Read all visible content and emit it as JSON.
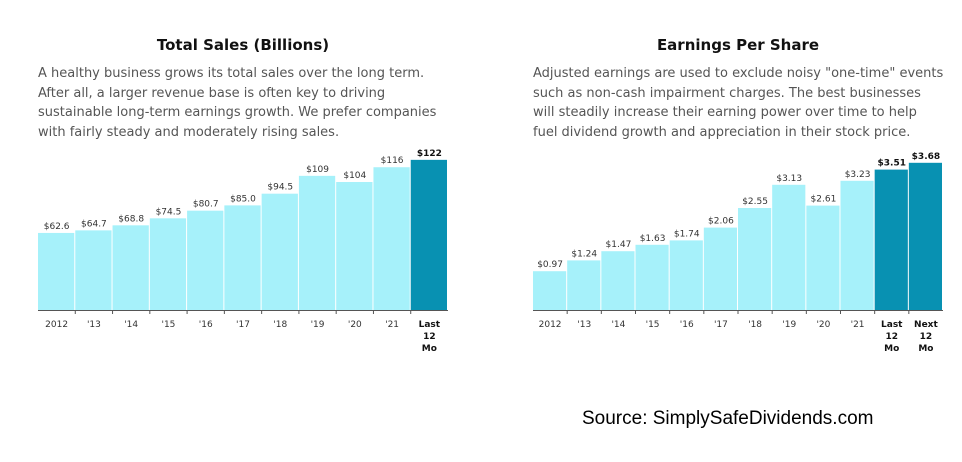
{
  "source": "Source: SimplySafeDividends.com",
  "colors": {
    "bar": "#A6F1FA",
    "highlight": "#0891B2",
    "axis": "#555555"
  },
  "panels": [
    {
      "title": "Total Sales (Billions)",
      "description": "A healthy business grows its total sales over the long term. After all, a larger revenue base is often key to driving sustainable long-term earnings growth. We prefer companies with fairly steady and moderately rising sales."
    },
    {
      "title": "Earnings Per Share",
      "description": "Adjusted earnings are used to exclude noisy \"one-time\" events such as non-cash impairment charges. The best businesses will steadily increase their earning power over time to help fuel dividend growth and appreciation in their stock price."
    }
  ],
  "chart_data": [
    {
      "type": "bar",
      "title": "Total Sales (Billions)",
      "categories": [
        "2012",
        "'13",
        "'14",
        "'15",
        "'16",
        "'17",
        "'18",
        "'19",
        "'20",
        "'21",
        "Last 12 Mo"
      ],
      "values": [
        62.6,
        64.7,
        68.8,
        74.5,
        80.7,
        85.0,
        94.5,
        109,
        104,
        116,
        122
      ],
      "labels": [
        "$62.6",
        "$64.7",
        "$68.8",
        "$74.5",
        "$80.7",
        "$85.0",
        "$94.5",
        "$109",
        "$104",
        "$116",
        "$122"
      ],
      "highlight": [
        false,
        false,
        false,
        false,
        false,
        false,
        false,
        false,
        false,
        false,
        true
      ],
      "xlabel": "",
      "ylabel": "",
      "ylim": [
        0,
        130
      ],
      "grid": false
    },
    {
      "type": "bar",
      "title": "Earnings Per Share",
      "categories": [
        "2012",
        "'13",
        "'14",
        "'15",
        "'16",
        "'17",
        "'18",
        "'19",
        "'20",
        "'21",
        "Last 12 Mo",
        "Next 12 Mo"
      ],
      "values": [
        0.97,
        1.24,
        1.47,
        1.63,
        1.74,
        2.06,
        2.55,
        3.13,
        2.61,
        3.23,
        3.51,
        3.68
      ],
      "labels": [
        "$0.97",
        "$1.24",
        "$1.47",
        "$1.63",
        "$1.74",
        "$2.06",
        "$2.55",
        "$3.13",
        "$2.61",
        "$3.23",
        "$3.51",
        "$3.68"
      ],
      "highlight": [
        false,
        false,
        false,
        false,
        false,
        false,
        false,
        false,
        false,
        false,
        true,
        true
      ],
      "xlabel": "",
      "ylabel": "",
      "ylim": [
        0,
        4.0
      ],
      "grid": false
    }
  ]
}
